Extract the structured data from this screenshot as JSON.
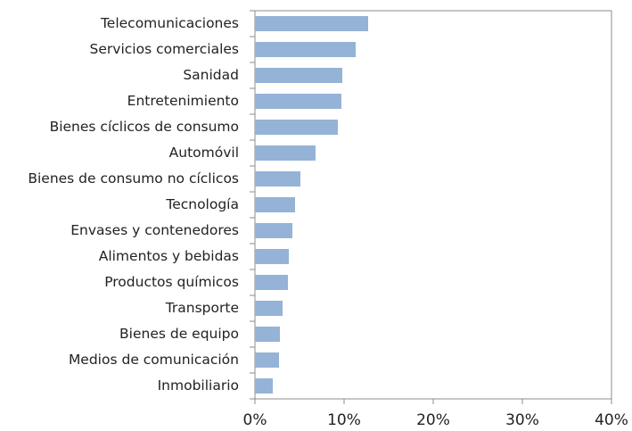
{
  "chart_data": {
    "type": "barh",
    "categories": [
      "Telecomunicaciones",
      "Servicios comerciales",
      "Sanidad",
      "Entretenimiento",
      "Bienes cíclicos de consumo",
      "Automóvil",
      "Bienes de consumo no cíclicos",
      "Tecnología",
      "Envases y contenedores",
      "Alimentos y bebidas",
      "Productos químicos",
      "Transporte",
      "Bienes de equipo",
      "Medios de comunicación",
      "Inmobiliario"
    ],
    "values": [
      12.7,
      11.3,
      9.8,
      9.7,
      9.3,
      6.8,
      5.1,
      4.5,
      4.2,
      3.8,
      3.7,
      3.1,
      2.8,
      2.7,
      2.0
    ],
    "color": "#95b3d7",
    "xlim": [
      0,
      40
    ],
    "xticks": [
      {
        "value": 0,
        "label": "0%"
      },
      {
        "value": 10,
        "label": "10%"
      },
      {
        "value": 20,
        "label": "20%"
      },
      {
        "value": 30,
        "label": "30%"
      },
      {
        "value": 40,
        "label": "40%"
      }
    ],
    "grid": false
  }
}
